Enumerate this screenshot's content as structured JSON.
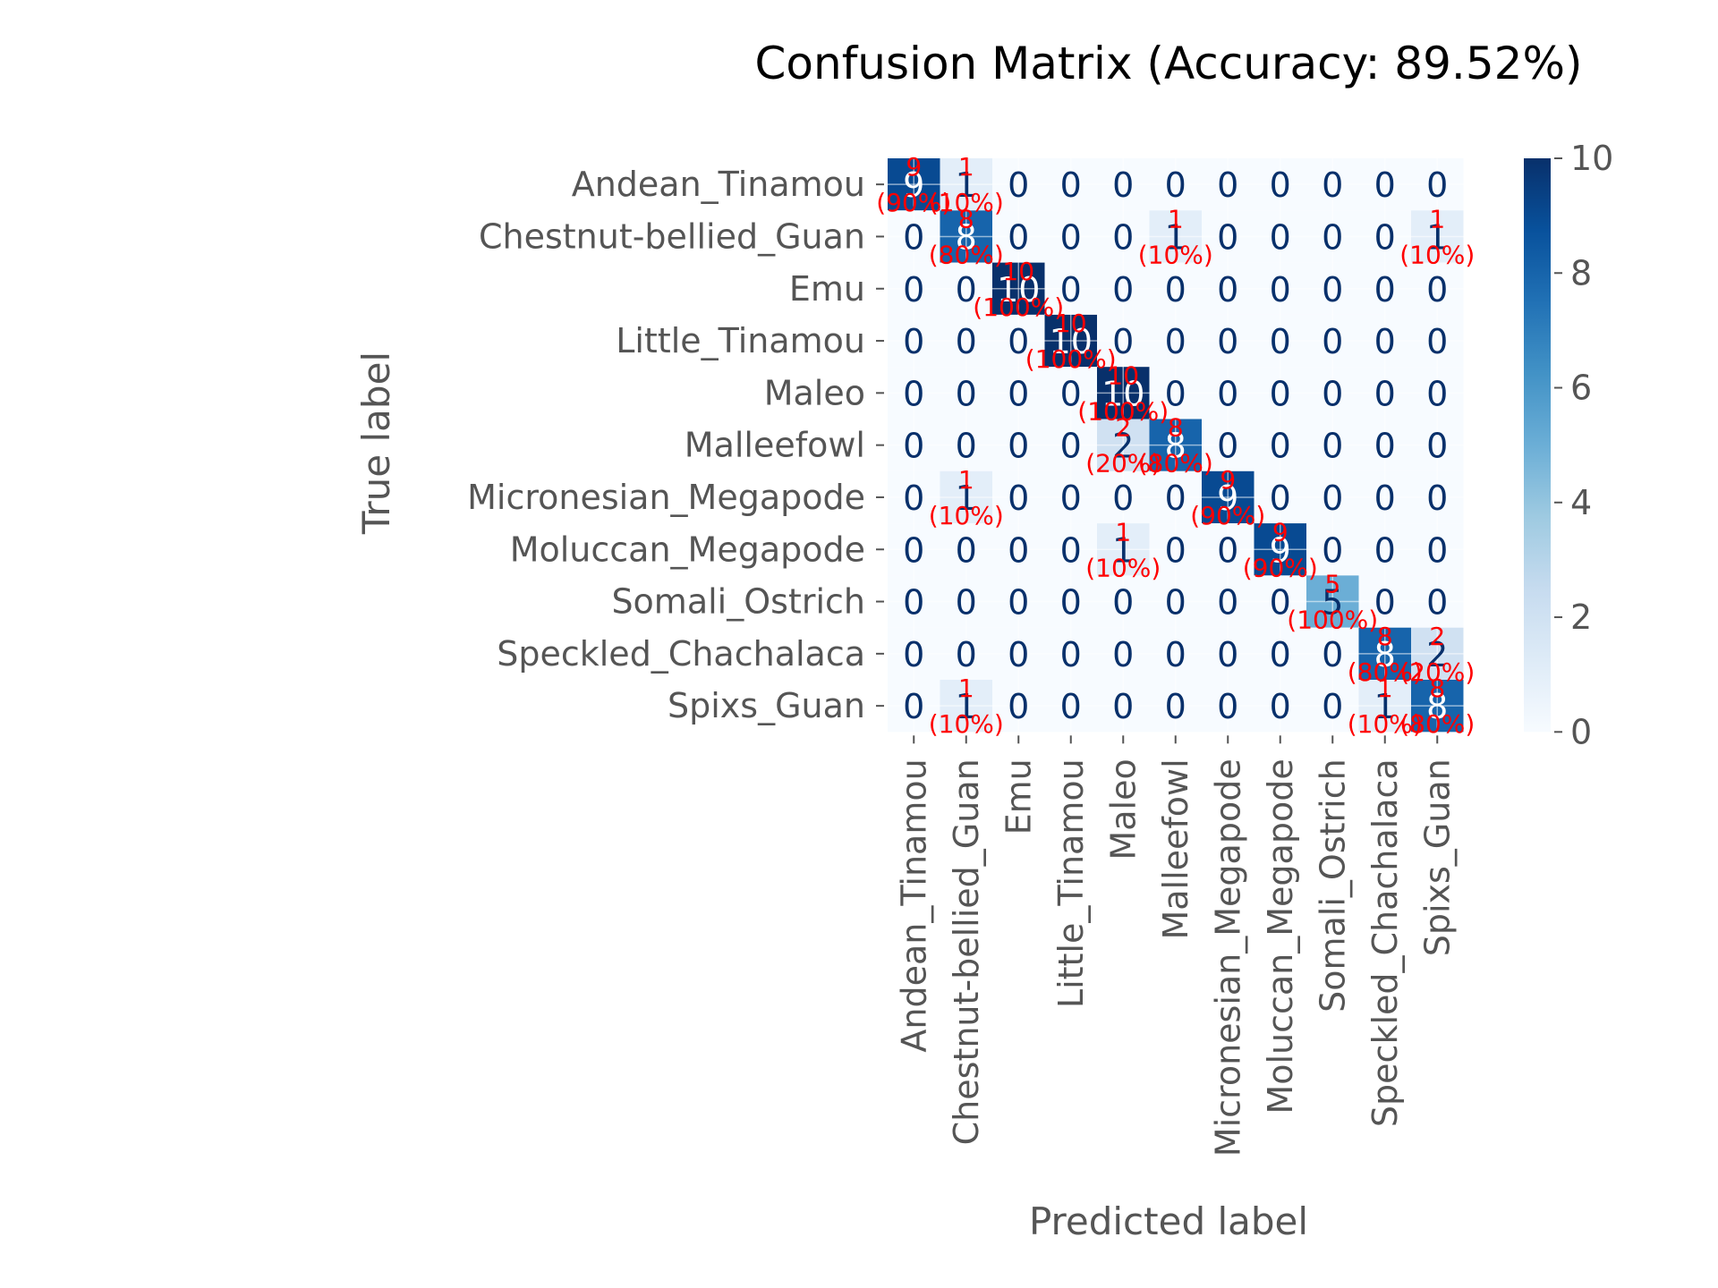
{
  "chart_data": {
    "type": "heatmap",
    "title": "Confusion Matrix (Accuracy: 89.52%)",
    "xlabel": "Predicted label",
    "ylabel": "True label",
    "categories": [
      "Andean_Tinamou",
      "Chestnut-bellied_Guan",
      "Emu",
      "Little_Tinamou",
      "Maleo",
      "Malleefowl",
      "Micronesian_Megapode",
      "Moluccan_Megapode",
      "Somali_Ostrich",
      "Speckled_Chachalaca",
      "Spixs_Guan"
    ],
    "matrix": [
      [
        9,
        1,
        0,
        0,
        0,
        0,
        0,
        0,
        0,
        0,
        0
      ],
      [
        0,
        8,
        0,
        0,
        0,
        1,
        0,
        0,
        0,
        0,
        1
      ],
      [
        0,
        0,
        10,
        0,
        0,
        0,
        0,
        0,
        0,
        0,
        0
      ],
      [
        0,
        0,
        0,
        10,
        0,
        0,
        0,
        0,
        0,
        0,
        0
      ],
      [
        0,
        0,
        0,
        0,
        10,
        0,
        0,
        0,
        0,
        0,
        0
      ],
      [
        0,
        0,
        0,
        0,
        2,
        8,
        0,
        0,
        0,
        0,
        0
      ],
      [
        0,
        1,
        0,
        0,
        0,
        0,
        9,
        0,
        0,
        0,
        0
      ],
      [
        0,
        0,
        0,
        0,
        1,
        0,
        0,
        9,
        0,
        0,
        0
      ],
      [
        0,
        0,
        0,
        0,
        0,
        0,
        0,
        0,
        5,
        0,
        0
      ],
      [
        0,
        0,
        0,
        0,
        0,
        0,
        0,
        0,
        0,
        8,
        2
      ],
      [
        0,
        1,
        0,
        0,
        0,
        0,
        0,
        0,
        0,
        1,
        8
      ]
    ],
    "percent_labels": [
      [
        "(90%)",
        "(10%)",
        "",
        "",
        "",
        "",
        "",
        "",
        "",
        "",
        ""
      ],
      [
        "",
        "(80%)",
        "",
        "",
        "",
        "(10%)",
        "",
        "",
        "",
        "",
        "(10%)"
      ],
      [
        "",
        "",
        "(100%)",
        "",
        "",
        "",
        "",
        "",
        "",
        "",
        ""
      ],
      [
        "",
        "",
        "",
        "(100%)",
        "",
        "",
        "",
        "",
        "",
        "",
        ""
      ],
      [
        "",
        "",
        "",
        "",
        "(100%)",
        "",
        "",
        "",
        "",
        "",
        ""
      ],
      [
        "",
        "",
        "",
        "",
        "(20%)",
        "(80%)",
        "",
        "",
        "",
        "",
        ""
      ],
      [
        "",
        "(10%)",
        "",
        "",
        "",
        "",
        "(90%)",
        "",
        "",
        "",
        ""
      ],
      [
        "",
        "",
        "",
        "",
        "(10%)",
        "",
        "",
        "(90%)",
        "",
        "",
        ""
      ],
      [
        "",
        "",
        "",
        "",
        "",
        "",
        "",
        "",
        "(100%)",
        "",
        ""
      ],
      [
        "",
        "",
        "",
        "",
        "",
        "",
        "",
        "",
        "",
        "(80%)",
        "(20%)"
      ],
      [
        "",
        "(10%)",
        "",
        "",
        "",
        "",
        "",
        "",
        "",
        "(10%)",
        "(80%)"
      ]
    ],
    "colorbar": {
      "min": 0,
      "max": 10,
      "ticks": [
        0,
        2,
        4,
        6,
        8,
        10
      ]
    },
    "colormap": "Blues",
    "colors": {
      "low": "#f7fbff",
      "high": "#08306b",
      "percent_text": "#ff0000",
      "count_text_dark": "#08306b",
      "count_text_light": "#ffffff",
      "label_text": "#555555",
      "title_text": "#000000"
    },
    "grid": true
  }
}
